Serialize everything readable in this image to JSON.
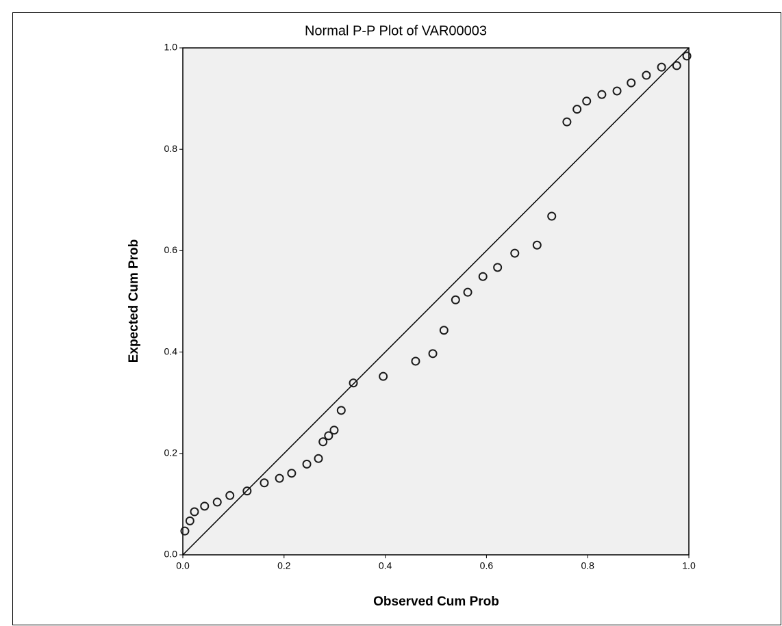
{
  "chart_data": {
    "type": "scatter",
    "title": "Normal P-P Plot of VAR00003",
    "x_label": "Observed Cum Prob",
    "y_label": "Expected Cum Prob",
    "x": [
      0.004,
      0.014,
      0.023,
      0.043,
      0.068,
      0.093,
      0.127,
      0.161,
      0.191,
      0.215,
      0.245,
      0.268,
      0.277,
      0.288,
      0.299,
      0.313,
      0.337,
      0.396,
      0.46,
      0.494,
      0.516,
      0.539,
      0.563,
      0.593,
      0.622,
      0.656,
      0.7,
      0.729,
      0.759,
      0.779,
      0.798,
      0.828,
      0.858,
      0.886,
      0.916,
      0.946,
      0.976,
      0.996
    ],
    "values": [
      0.047,
      0.067,
      0.085,
      0.096,
      0.104,
      0.117,
      0.126,
      0.142,
      0.151,
      0.161,
      0.179,
      0.19,
      0.223,
      0.235,
      0.246,
      0.285,
      0.339,
      0.352,
      0.382,
      0.397,
      0.443,
      0.503,
      0.518,
      0.549,
      0.567,
      0.595,
      0.611,
      0.668,
      0.854,
      0.879,
      0.895,
      0.908,
      0.915,
      0.931,
      0.946,
      0.962,
      0.965,
      0.984
    ],
    "color": "#1a1a1a",
    "xlim": [
      0,
      1
    ],
    "ylim": [
      0,
      1
    ],
    "xticks": [
      {
        "value": 0,
        "label": "0.0"
      },
      0.2,
      0.4,
      0.6,
      0.8,
      {
        "value": 1,
        "label": "1.0"
      }
    ],
    "yticks": [
      {
        "value": 0,
        "label": "0.0"
      },
      0.2,
      0.4,
      0.6,
      0.8,
      {
        "value": 1,
        "label": "1.0"
      }
    ],
    "reference_line": true
  }
}
